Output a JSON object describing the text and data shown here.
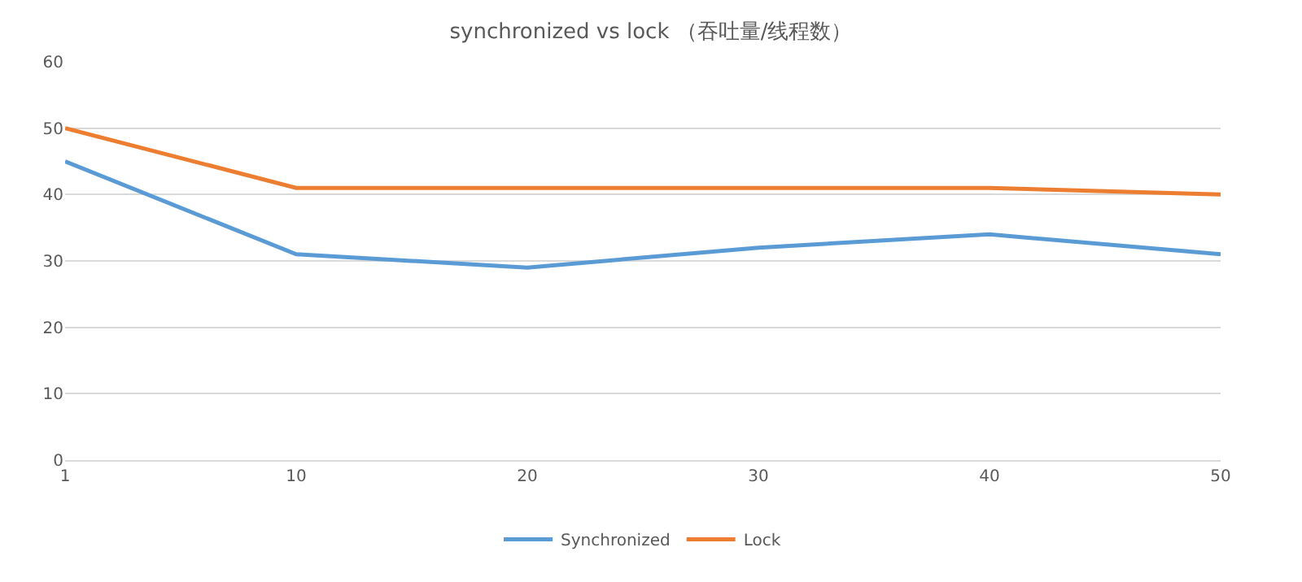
{
  "chart_data": {
    "type": "line",
    "title": "synchronized vs lock （吞吐量/线程数）",
    "categories": [
      "1",
      "10",
      "20",
      "30",
      "40",
      "50"
    ],
    "series": [
      {
        "name": "Synchronized",
        "color": "#5b9bd5",
        "values": [
          45,
          31,
          29,
          32,
          34,
          31
        ]
      },
      {
        "name": "Lock",
        "color": "#ed7d31",
        "values": [
          50,
          41,
          41,
          41,
          41,
          40
        ]
      }
    ],
    "ylim": [
      0,
      60
    ],
    "yticks": [
      0,
      10,
      20,
      30,
      40,
      50,
      60
    ],
    "grid": "y",
    "legend": "bottom",
    "marker": "none",
    "line_style": "solid"
  }
}
